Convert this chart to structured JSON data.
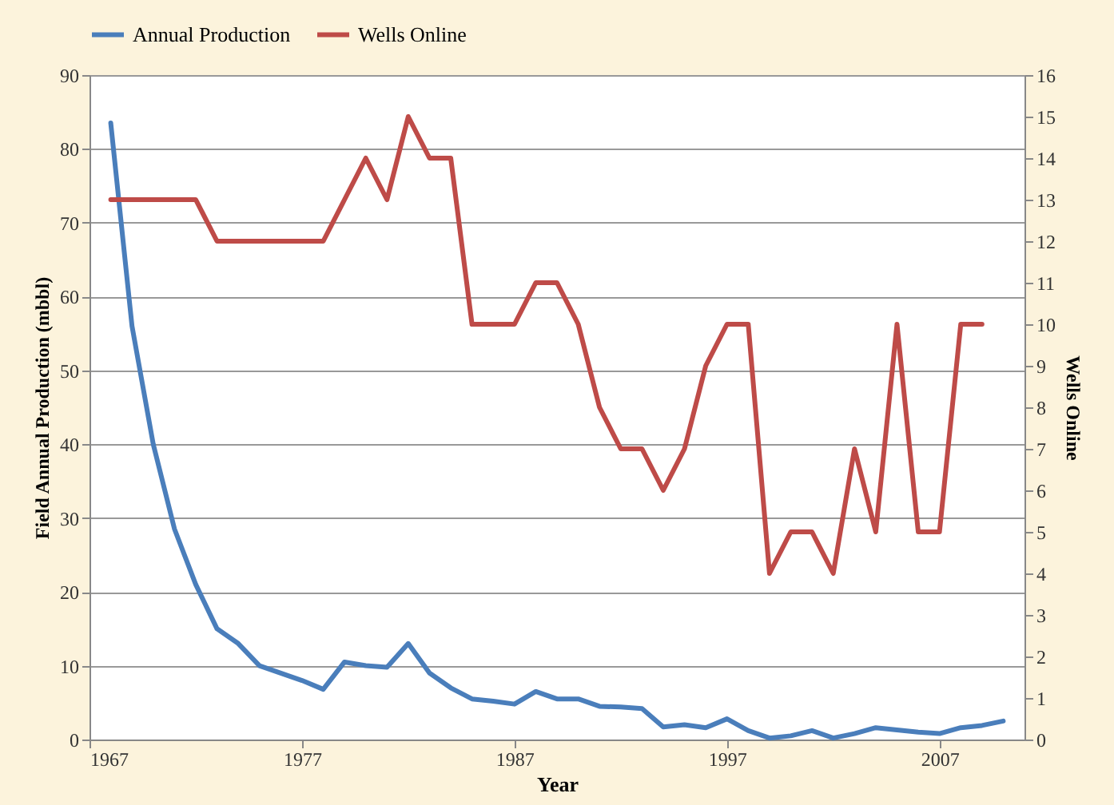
{
  "chart_data": {
    "type": "line",
    "xlabel": "Year",
    "ylabel": "Field Annual Production (mbbl)",
    "y2label": "Wells Online",
    "xlim": [
      1967,
      2011
    ],
    "xticks": [
      1967,
      1977,
      1987,
      1997,
      2007
    ],
    "ylim": [
      0,
      90
    ],
    "yticks": [
      0,
      10,
      20,
      30,
      40,
      50,
      60,
      70,
      80,
      90
    ],
    "y2lim": [
      0,
      16
    ],
    "y2ticks": [
      0,
      1,
      2,
      3,
      4,
      5,
      6,
      7,
      8,
      9,
      10,
      11,
      12,
      13,
      14,
      15,
      16
    ],
    "grid": "y",
    "legend": "top",
    "marker": "none",
    "line_style": "solid",
    "series": [
      {
        "name": "Annual Production",
        "color": "#4a7ebb",
        "x": [
          1968,
          1969,
          1970,
          1971,
          1972,
          1973,
          1974,
          1975,
          1976,
          1977,
          1978,
          1979,
          1980,
          1981,
          1982,
          1983,
          1984,
          1985,
          1986,
          1987,
          1988,
          1989,
          1990,
          1991,
          1992,
          1993,
          1994,
          1995,
          1996,
          1997,
          1998,
          1999,
          2000,
          2001,
          2002,
          2003,
          2004,
          2005,
          2006,
          2007,
          2008,
          2009,
          2010
        ],
        "values": [
          83.5,
          56,
          40,
          28.5,
          21,
          15,
          13,
          10,
          9,
          8,
          6.8,
          10.5,
          10,
          9.8,
          13,
          9,
          7,
          5.5,
          5.2,
          4.8,
          6.5,
          5.5,
          5.5,
          4.5,
          4.4,
          4.2,
          1.7,
          2,
          1.6,
          2.8,
          1.2,
          0.2,
          0.5,
          1.2,
          0.2,
          0.8,
          1.6,
          1.3,
          1,
          0.8,
          1.6,
          1.9,
          2.5
        ]
      },
      {
        "name": "Wells Online",
        "color": "#be4b48",
        "axis": "y2",
        "x": [
          1968,
          1969,
          1970,
          1971,
          1972,
          1973,
          1974,
          1975,
          1976,
          1977,
          1978,
          1979,
          1980,
          1981,
          1982,
          1983,
          1984,
          1985,
          1986,
          1987,
          1988,
          1989,
          1990,
          1991,
          1992,
          1993,
          1994,
          1995,
          1996,
          1997,
          1998,
          1999,
          2000,
          2001,
          2002,
          2003,
          2004,
          2005,
          2006,
          2007,
          2008,
          2009
        ],
        "values": [
          13,
          13,
          13,
          13,
          13,
          12,
          12,
          12,
          12,
          12,
          12,
          13,
          14,
          13,
          15,
          14,
          14,
          10,
          10,
          10,
          11,
          11,
          10,
          8,
          7,
          7,
          6,
          7,
          9,
          10,
          10,
          4,
          5,
          5,
          4,
          7,
          5,
          10,
          5,
          5,
          10,
          10
        ]
      }
    ]
  }
}
